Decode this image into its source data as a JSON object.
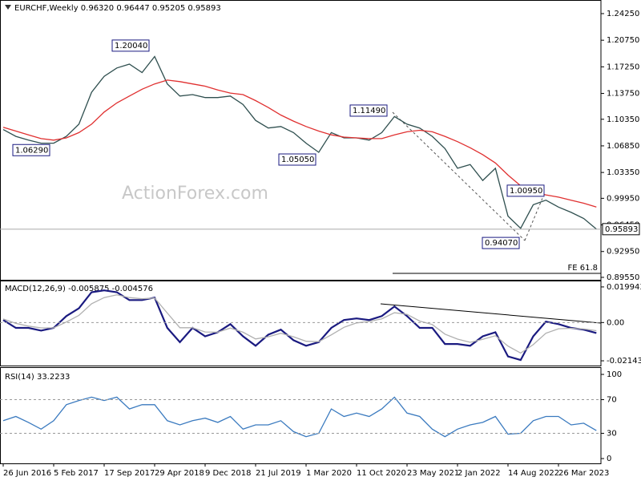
{
  "chart_data": [
    {
      "type": "line",
      "title": "EURCHF,Weekly  0.96320 0.96447 0.95205 0.95893",
      "watermark": "ActionForex.com",
      "categories": [
        "26 Jun 2016",
        null,
        null,
        null,
        "5 Feb 2017",
        null,
        null,
        null,
        "17 Sep 2017",
        null,
        null,
        null,
        "29 Apr 2018",
        null,
        null,
        null,
        "9 Dec 2018",
        null,
        null,
        null,
        "21 Jul 2019",
        null,
        null,
        null,
        "1 Mar 2020",
        null,
        null,
        null,
        "11 Oct 2020",
        null,
        null,
        null,
        "23 May 2021",
        null,
        null,
        null,
        "2 Jan 2022",
        null,
        null,
        null,
        "14 Aug 2022",
        null,
        null,
        null,
        "26 Mar 2023",
        null,
        null,
        null
      ],
      "series": [
        {
          "color": "#2f4f4f",
          "values": [
            1.09,
            1.081,
            1.076,
            1.072,
            1.072,
            1.081,
            1.097,
            1.139,
            1.16,
            1.171,
            1.176,
            1.165,
            1.186,
            1.15,
            1.134,
            1.136,
            1.132,
            1.132,
            1.134,
            1.123,
            1.102,
            1.092,
            1.094,
            1.086,
            1.072,
            1.06,
            1.086,
            1.079,
            1.079,
            1.076,
            1.086,
            1.107,
            1.097,
            1.092,
            1.081,
            1.065,
            1.039,
            1.044,
            1.023,
            1.039,
            0.976,
            0.96,
            0.991,
            0.997,
            0.988,
            0.981,
            0.973,
            0.95893
          ]
        },
        {
          "color": "#e03030",
          "values": [
            1.093,
            1.088,
            1.083,
            1.078,
            1.076,
            1.079,
            1.086,
            1.097,
            1.113,
            1.125,
            1.134,
            1.143,
            1.15,
            1.155,
            1.153,
            1.15,
            1.147,
            1.142,
            1.138,
            1.136,
            1.128,
            1.119,
            1.109,
            1.101,
            1.094,
            1.088,
            1.083,
            1.08,
            1.079,
            1.078,
            1.078,
            1.083,
            1.087,
            1.089,
            1.087,
            1.081,
            1.074,
            1.066,
            1.057,
            1.046,
            1.03,
            1.016,
            1.008,
            1.004,
            1.001,
            0.997,
            0.993,
            0.988
          ]
        }
      ],
      "ylim": [
        0.8923,
        1.2583
      ],
      "yticks": [
        {
          "value": 1.2425,
          "label": "1.24250"
        },
        {
          "value": 1.2075,
          "label": "1.20750"
        },
        {
          "value": 1.1725,
          "label": "1.17250"
        },
        {
          "value": 1.1375,
          "label": "1.13750"
        },
        {
          "value": 1.1035,
          "label": "1.10350"
        },
        {
          "value": 1.0685,
          "label": "1.06850"
        },
        {
          "value": 1.0335,
          "label": "1.03350"
        },
        {
          "value": 0.9995,
          "label": "0.99950"
        },
        {
          "value": 0.9645,
          "label": "0.96450"
        },
        {
          "value": 0.9295,
          "label": "0.92950"
        },
        {
          "value": 0.8955,
          "label": "0.89550"
        }
      ],
      "last_price": {
        "value": 0.95893,
        "label": "0.95893"
      },
      "annotations": [
        {
          "value": 1.2004,
          "label": "1.20040"
        },
        {
          "value": 1.1149,
          "label": "1.11490"
        },
        {
          "value": 1.0629,
          "label": "1.06290"
        },
        {
          "value": 1.0505,
          "label": "1.05050"
        },
        {
          "value": 1.0095,
          "label": "1.00950"
        },
        {
          "value": 0.9407,
          "label": "0.94070"
        }
      ],
      "fe_line": {
        "value": 0.9008,
        "label": "FE 61.8"
      }
    },
    {
      "type": "line",
      "title": "MACD(12,26,9) -0.005875 -0.004576",
      "series": [
        {
          "color": "#1a1a80",
          "values": [
            0.0014,
            -0.003,
            -0.003,
            -0.0045,
            -0.003,
            0.0036,
            0.008,
            0.017,
            0.018,
            0.017,
            0.0126,
            0.0126,
            0.014,
            -0.003,
            -0.011,
            -0.003,
            -0.0077,
            -0.0054,
            -0.0009,
            -0.0077,
            -0.013,
            -0.0068,
            -0.004,
            -0.0099,
            -0.013,
            -0.011,
            -0.003,
            0.0014,
            0.0023,
            0.0014,
            0.0036,
            0.009,
            0.0036,
            -0.003,
            -0.003,
            -0.012,
            -0.012,
            -0.013,
            -0.0077,
            -0.0054,
            -0.019,
            -0.021,
            -0.0077,
            0.0005,
            -0.0009,
            -0.003,
            -0.004,
            -0.005875
          ]
        },
        {
          "color": "#b0b0b0",
          "values": [
            0.002,
            -0.0005,
            -0.002,
            -0.003,
            -0.003,
            0.0003,
            0.004,
            0.0105,
            0.014,
            0.0155,
            0.014,
            0.0133,
            0.0137,
            0.0053,
            -0.0029,
            -0.0029,
            -0.0053,
            -0.0054,
            -0.0031,
            -0.0054,
            -0.0092,
            -0.008,
            -0.006,
            -0.008,
            -0.0105,
            -0.0107,
            -0.0069,
            -0.0027,
            -0.0002,
            0.0006,
            0.0021,
            0.0055,
            0.0046,
            0.0008,
            -0.0011,
            -0.0065,
            -0.0093,
            -0.0111,
            -0.0094,
            -0.0074,
            -0.0132,
            -0.0171,
            -0.0124,
            -0.006,
            -0.0035,
            -0.0032,
            -0.0036,
            -0.004576
          ]
        }
      ],
      "ylim": [
        -0.0241,
        0.0226
      ],
      "yticks": [
        0.019943,
        {
          "value": 0,
          "label": "0.00"
        },
        -0.021434
      ],
      "level_lines": [
        0
      ]
    },
    {
      "type": "line",
      "title": "RSI(14) 33.2233",
      "series": [
        {
          "color": "#3a7abf",
          "values": [
            45,
            50,
            43,
            35,
            45,
            64,
            69,
            73,
            69,
            73,
            59,
            64,
            64,
            45,
            40,
            45,
            48,
            43,
            50,
            35,
            40,
            40,
            45,
            32,
            26,
            30,
            59,
            50,
            54,
            50,
            59,
            73,
            54,
            50,
            35,
            26,
            35,
            40,
            43,
            50,
            29,
            30,
            45,
            50,
            50,
            40,
            42,
            33.2233
          ]
        }
      ],
      "ylim": [
        -5.7,
        106.7
      ],
      "yticks": [
        100,
        70,
        30,
        0
      ],
      "level_lines": [
        70,
        30
      ]
    }
  ]
}
